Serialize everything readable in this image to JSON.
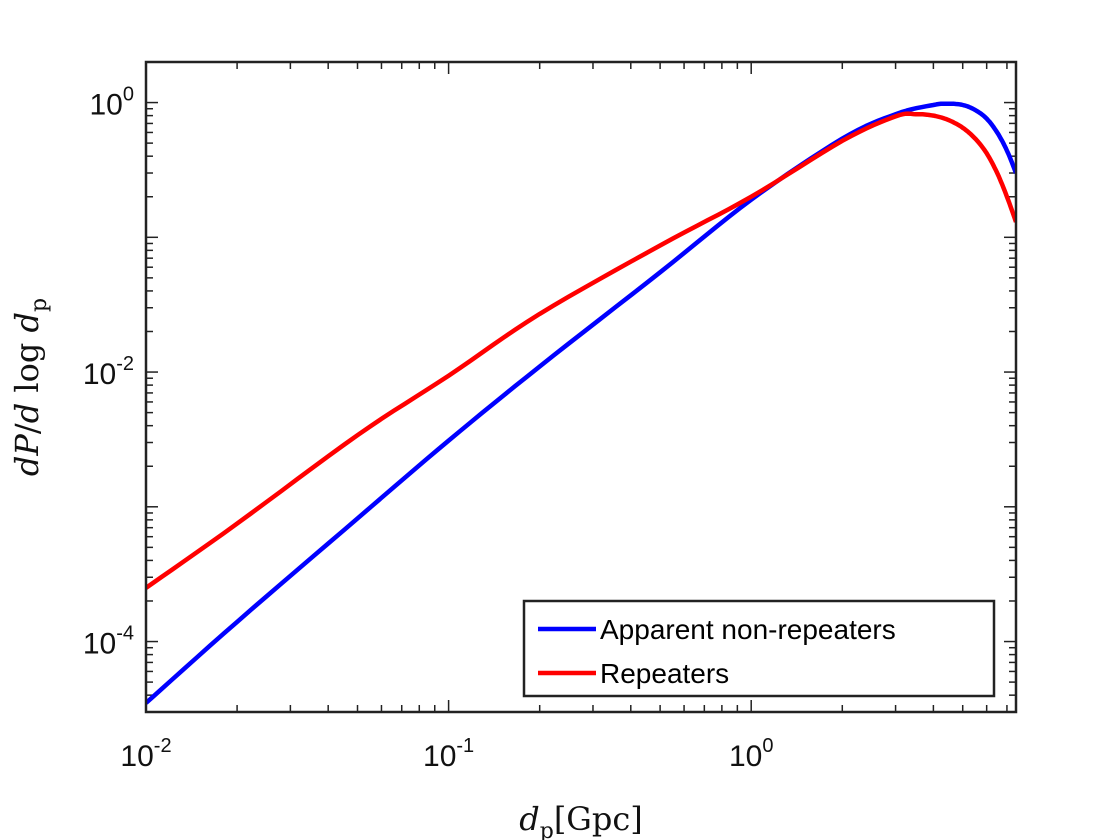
{
  "chart_data": {
    "type": "line",
    "title": "",
    "xlabel": "d_p [Gpc]",
    "ylabel": "dP/d log d_p",
    "xscale": "log",
    "yscale": "log",
    "xlim": [
      0.01,
      7.5
    ],
    "ylim": [
      3e-05,
      2.0
    ],
    "grid": false,
    "legend_position": "bottom-right",
    "xticks": [
      {
        "base": "10",
        "exp": "-2"
      },
      {
        "base": "10",
        "exp": "-1"
      },
      {
        "base": "10",
        "exp": "0"
      }
    ],
    "yticks": [
      {
        "base": "10",
        "exp": "-4"
      },
      {
        "base": "10",
        "exp": "-2"
      },
      {
        "base": "10",
        "exp": "0"
      }
    ],
    "series": [
      {
        "name": "Apparent non-repeaters",
        "color": "#0000ff",
        "x": [
          0.01,
          0.02,
          0.05,
          0.1,
          0.2,
          0.5,
          1.0,
          2.0,
          3.0,
          4.0,
          4.5,
          5.0,
          5.5,
          6.0,
          6.5,
          7.0,
          7.5
        ],
        "y": [
          3.5e-05,
          0.00014,
          0.00082,
          0.0031,
          0.011,
          0.055,
          0.19,
          0.54,
          0.82,
          0.96,
          0.98,
          0.96,
          0.88,
          0.76,
          0.6,
          0.44,
          0.3
        ]
      },
      {
        "name": "Repeaters",
        "color": "#ff0000",
        "x": [
          0.01,
          0.02,
          0.05,
          0.1,
          0.2,
          0.5,
          1.0,
          2.0,
          3.0,
          3.5,
          4.0,
          4.5,
          5.0,
          5.5,
          6.0,
          6.5,
          7.0,
          7.5
        ],
        "y": [
          0.00025,
          0.00075,
          0.0034,
          0.0094,
          0.027,
          0.087,
          0.2,
          0.52,
          0.79,
          0.82,
          0.8,
          0.74,
          0.65,
          0.54,
          0.42,
          0.3,
          0.2,
          0.13
        ]
      }
    ]
  }
}
